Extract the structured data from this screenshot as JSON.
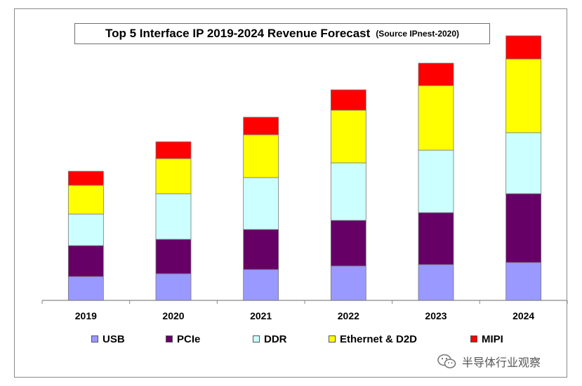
{
  "chart_data": {
    "type": "bar",
    "stacked": true,
    "title": "Top 5 Interface IP 2019-2024 Revenue Forecast",
    "subtitle": "(Source IPnest-2020)",
    "categories": [
      "2019",
      "2020",
      "2021",
      "2022",
      "2023",
      "2024"
    ],
    "series": [
      {
        "name": "USB",
        "color": "#9999ff",
        "values": [
          34,
          38,
          44,
          49,
          51,
          54
        ]
      },
      {
        "name": "PCIe",
        "color": "#660066",
        "values": [
          44,
          49,
          57,
          65,
          74,
          98
        ]
      },
      {
        "name": "DDR",
        "color": "#ccffff",
        "values": [
          45,
          65,
          74,
          82,
          89,
          87
        ]
      },
      {
        "name": "Ethernet & D2D",
        "color": "#ffff00",
        "values": [
          41,
          50,
          61,
          75,
          92,
          105
        ]
      },
      {
        "name": "MIPI",
        "color": "#ff0000",
        "values": [
          20,
          24,
          25,
          29,
          32,
          33
        ]
      }
    ],
    "ylim": [
      0,
      380
    ],
    "legend_position": "bottom",
    "grid": false
  },
  "watermark": {
    "icon": "wechat-icon",
    "text": "半导体行业观察"
  }
}
